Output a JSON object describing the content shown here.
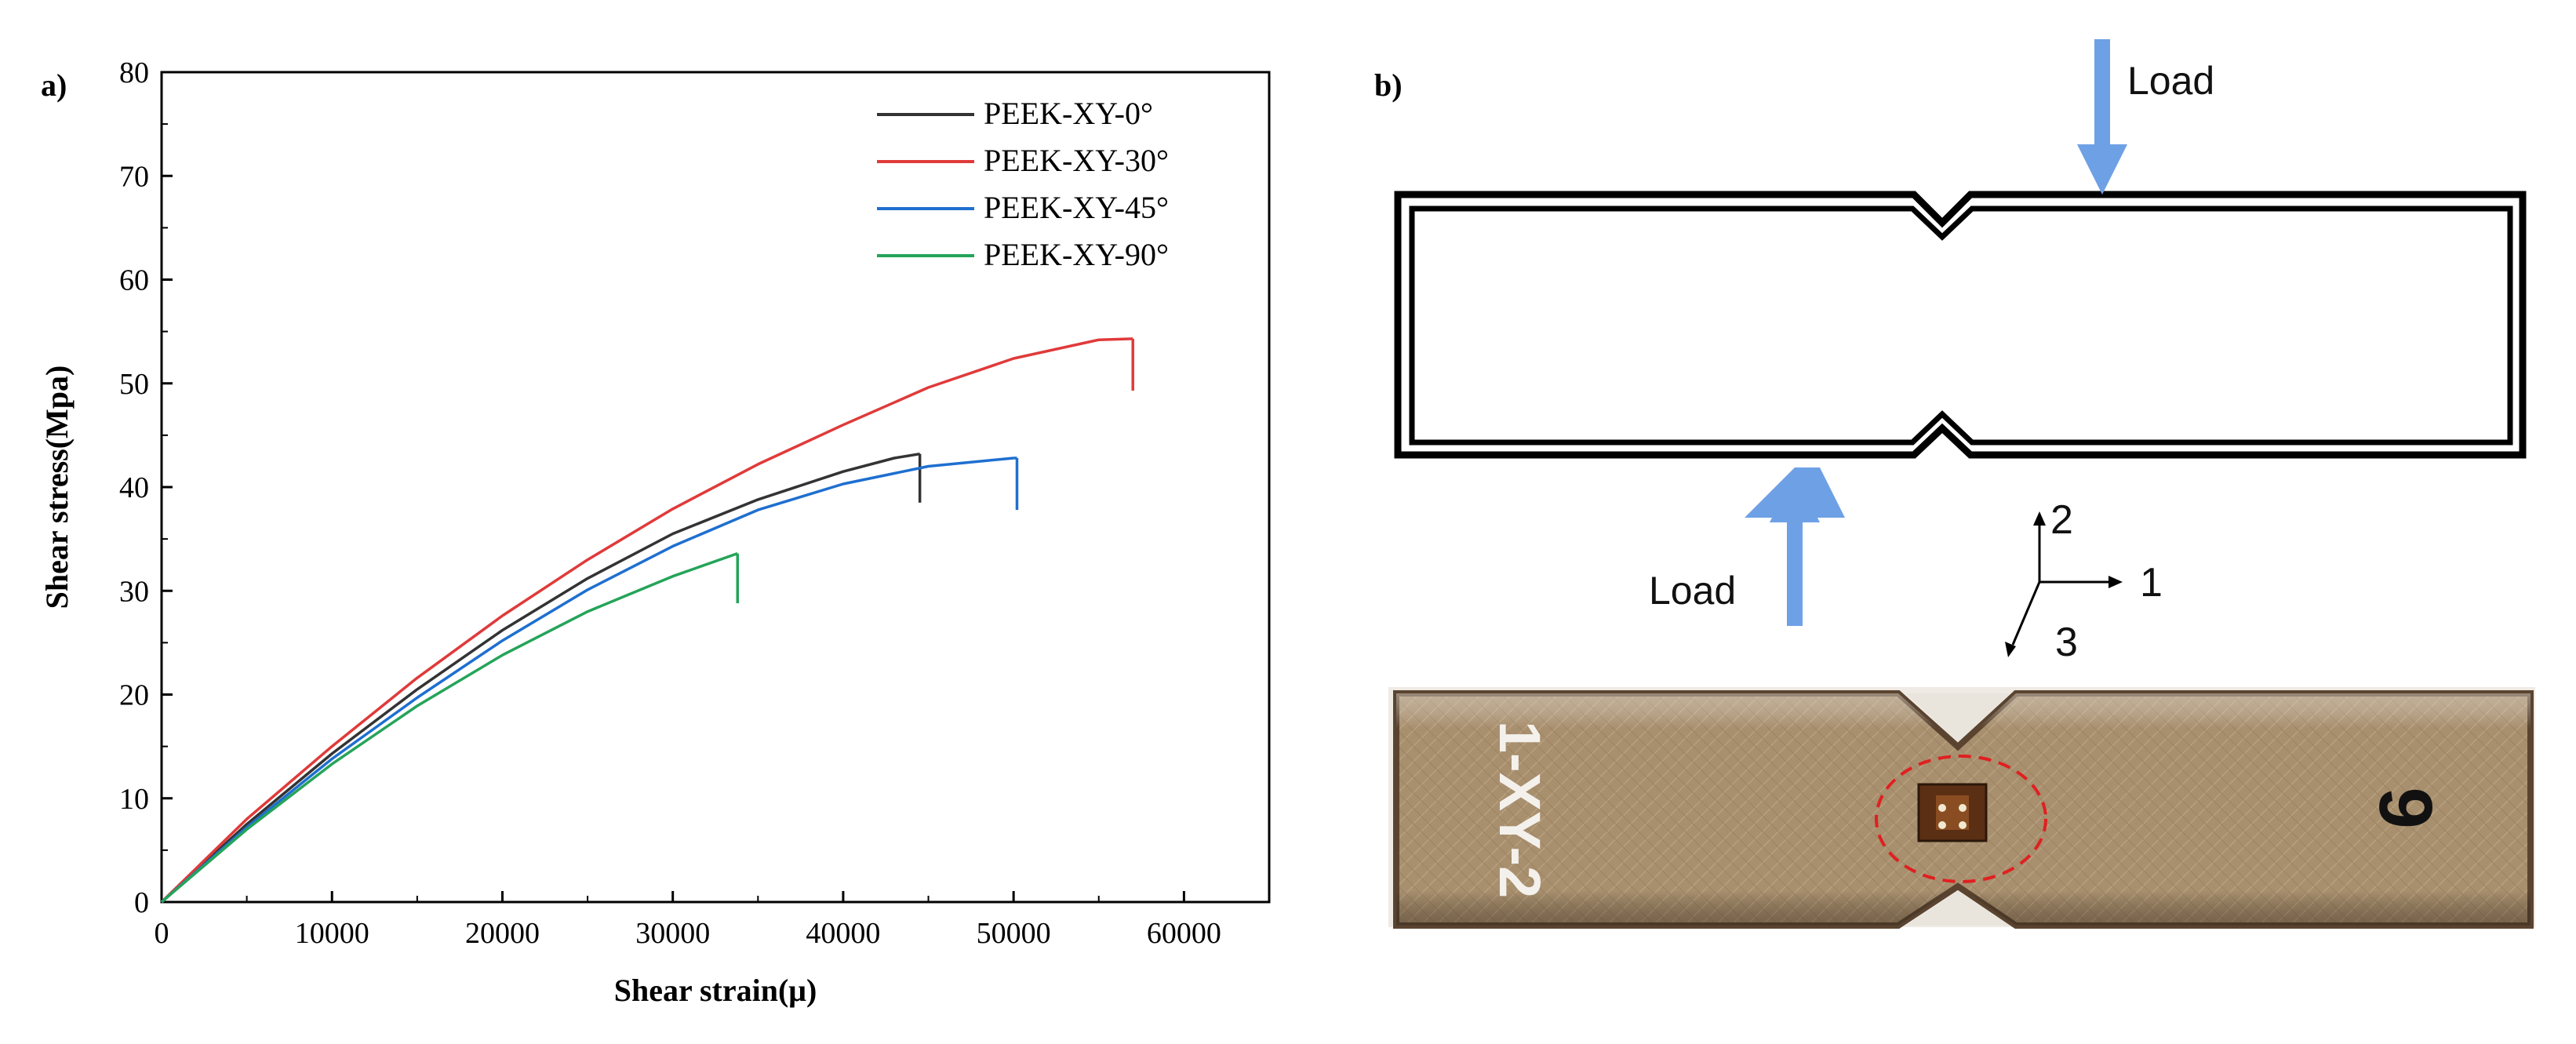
{
  "panel_a": {
    "label": "a)"
  },
  "panel_b": {
    "label": "b)",
    "load_top": "Load",
    "load_bottom": "Load",
    "axes": {
      "axis_1": "1",
      "axis_2": "2",
      "axis_3": "3"
    },
    "specimen_photo": {
      "handwritten_left": "1-XY-2",
      "handwritten_right": "6"
    },
    "colors": {
      "arrow": "#6ea0e6",
      "outline": "#000000",
      "gauge_circle": "#e02020"
    }
  },
  "chart_data": {
    "type": "line",
    "title": "",
    "xlabel": "Shear strain(μ)",
    "ylabel": "Shear stress(Mpa)",
    "xlim": [
      0,
      65000
    ],
    "ylim": [
      0,
      80
    ],
    "x_ticks": [
      0,
      10000,
      20000,
      30000,
      40000,
      50000,
      60000
    ],
    "y_ticks": [
      0,
      10,
      20,
      30,
      40,
      50,
      60,
      70,
      80
    ],
    "x_tick_labels": [
      "0",
      "10000",
      "20000",
      "30000",
      "40000",
      "50000",
      "60000"
    ],
    "y_tick_labels": [
      "0",
      "10",
      "20",
      "30",
      "40",
      "50",
      "60",
      "70",
      "80"
    ],
    "grid": false,
    "legend_position": "top-right",
    "series": [
      {
        "name": "PEEK-XY-0°",
        "color": "#333333",
        "x": [
          0,
          5000,
          10000,
          15000,
          20000,
          25000,
          30000,
          35000,
          40000,
          43000,
          44500
        ],
        "y": [
          0,
          7.5,
          14.3,
          20.5,
          26.2,
          31.2,
          35.5,
          38.8,
          41.5,
          42.8,
          43.2
        ],
        "failure": {
          "x": 44500,
          "y_from": 43.2,
          "y_to": 38.5
        }
      },
      {
        "name": "PEEK-XY-30°",
        "color": "#e03a3a",
        "x": [
          0,
          5000,
          10000,
          15000,
          20000,
          25000,
          30000,
          35000,
          40000,
          45000,
          50000,
          55000,
          57000
        ],
        "y": [
          0,
          8.0,
          15.0,
          21.6,
          27.6,
          33.0,
          37.9,
          42.2,
          46.0,
          49.6,
          52.4,
          54.2,
          54.3
        ],
        "failure": {
          "x": 57000,
          "y_from": 54.3,
          "y_to": 49.3
        }
      },
      {
        "name": "PEEK-XY-45°",
        "color": "#1e6fd0",
        "x": [
          0,
          5000,
          10000,
          15000,
          20000,
          25000,
          30000,
          35000,
          40000,
          45000,
          50000
        ],
        "y": [
          0,
          7.2,
          13.8,
          19.7,
          25.2,
          30.1,
          34.3,
          37.8,
          40.3,
          42.0,
          42.8
        ],
        "failure": {
          "x": 50200,
          "y_from": 42.8,
          "y_to": 37.8
        }
      },
      {
        "name": "PEEK-XY-90°",
        "color": "#25a45a",
        "x": [
          0,
          5000,
          10000,
          15000,
          20000,
          25000,
          30000,
          33800
        ],
        "y": [
          0,
          7.0,
          13.3,
          18.9,
          23.8,
          28.0,
          31.4,
          33.6
        ],
        "failure": {
          "x": 33800,
          "y_from": 33.6,
          "y_to": 28.8
        }
      }
    ]
  }
}
